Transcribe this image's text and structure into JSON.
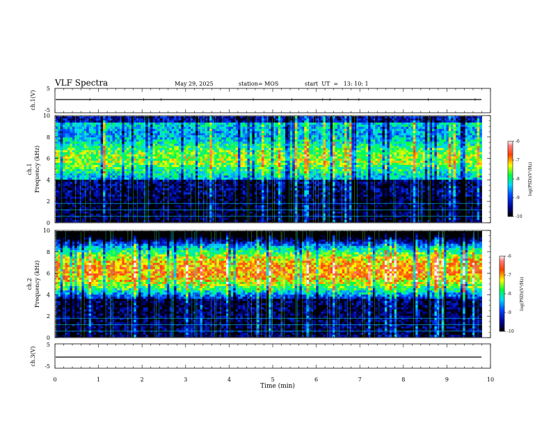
{
  "header": {
    "title": "VLF Spectra",
    "date": "May 29, 2025",
    "station": "station= MOS",
    "start": "start  UT  =   13: 10: 1"
  },
  "chart_data": {
    "type": "heatmap",
    "xlabel": "Time (min)",
    "xlim": [
      0,
      10
    ],
    "xticks": [
      "0",
      "1",
      "2",
      "3",
      "4",
      "5",
      "6",
      "7",
      "8",
      "9",
      "10"
    ],
    "panels": [
      {
        "id": "ch1-waveform",
        "ylabel": "ch.1(V)",
        "ylim": [
          -5,
          5
        ],
        "yticks": [
          "5",
          "-5"
        ],
        "baseline": 0,
        "type": "line"
      },
      {
        "id": "ch1-spectrogram",
        "ylabel_line1": "ch.1",
        "ylabel_line2": "Frequency (kHz)",
        "ylim": [
          0,
          10
        ],
        "yticks": [
          "0",
          "2",
          "4",
          "6",
          "8",
          "10"
        ],
        "type": "heatmap",
        "data_tmax": 9.8,
        "colorbar": {
          "range": [
            -10,
            -6
          ],
          "ticks": [
            "-6",
            "-7",
            "-8",
            "-9",
            "-10"
          ],
          "label": "log(PSD)(V²/Hz)"
        },
        "banded_lines_khz": [
          0.6,
          1.2,
          1.8
        ]
      },
      {
        "id": "ch2-spectrogram",
        "ylabel_line1": "ch.2",
        "ylabel_line2": "Frequency (kHz)",
        "ylim": [
          0,
          10
        ],
        "yticks": [
          "0",
          "2",
          "4",
          "6",
          "8",
          "10"
        ],
        "type": "heatmap",
        "data_tmax": 9.8,
        "colorbar": {
          "range": [
            -10,
            -6
          ],
          "ticks": [
            "-6",
            "-7",
            "-8",
            "-9",
            "-10"
          ],
          "label": "log(PSD)(V²/Hz)"
        },
        "banded_lines_khz": [
          0.6,
          1.2,
          1.8
        ]
      },
      {
        "id": "ch3-waveform",
        "ylabel": "ch.3(V)",
        "ylim": [
          -5,
          5
        ],
        "yticks": [
          "5",
          "-5"
        ],
        "baseline": -1.2,
        "type": "line"
      }
    ]
  }
}
